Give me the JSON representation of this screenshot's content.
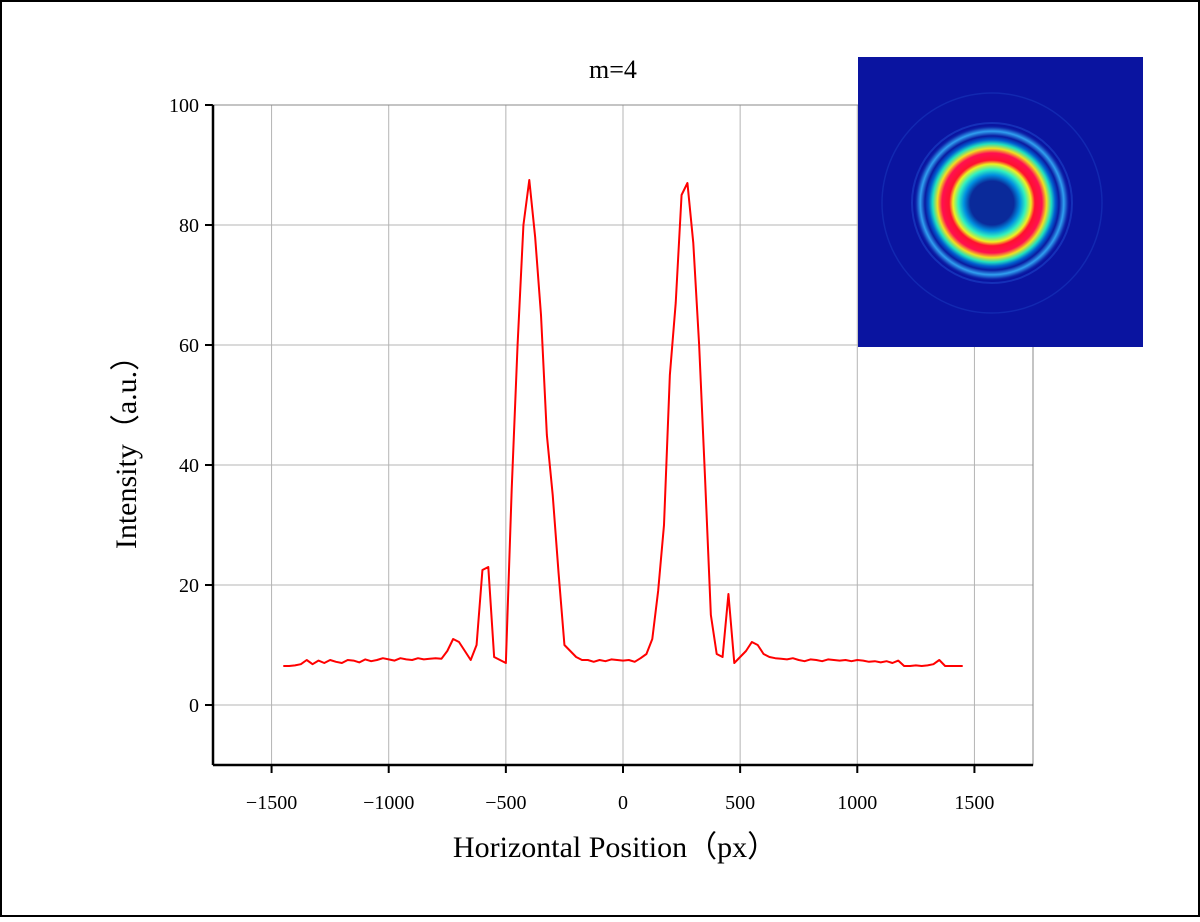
{
  "chart_data": {
    "type": "line",
    "title": "m=4",
    "x_label": "Horizontal Position（px）",
    "y_label": "Intensity（a.u.）",
    "color": "#ff0000",
    "grid": true,
    "xlim": [
      -1750,
      1750
    ],
    "ylim": [
      -10,
      100
    ],
    "xticks": [
      {
        "value": -1500,
        "label": "−1500"
      },
      {
        "value": -1000,
        "label": "−1000"
      },
      {
        "value": -500,
        "label": "−500"
      },
      0,
      500,
      1000,
      1500
    ],
    "yticks": [
      0,
      20,
      40,
      60,
      80,
      100
    ],
    "x": [
      -1450,
      -1425,
      -1400,
      -1375,
      -1350,
      -1325,
      -1300,
      -1275,
      -1250,
      -1225,
      -1200,
      -1175,
      -1150,
      -1125,
      -1100,
      -1075,
      -1050,
      -1025,
      -1000,
      -975,
      -950,
      -925,
      -900,
      -875,
      -850,
      -825,
      -800,
      -775,
      -750,
      -725,
      -700,
      -675,
      -650,
      -625,
      -600,
      -575,
      -550,
      -525,
      -500,
      -475,
      -450,
      -425,
      -400,
      -375,
      -350,
      -325,
      -300,
      -275,
      -250,
      -225,
      -200,
      -175,
      -150,
      -125,
      -100,
      -75,
      -50,
      -25,
      0,
      25,
      50,
      75,
      100,
      125,
      150,
      175,
      200,
      225,
      250,
      275,
      300,
      325,
      350,
      375,
      400,
      425,
      450,
      475,
      500,
      525,
      550,
      575,
      600,
      625,
      650,
      675,
      700,
      725,
      750,
      775,
      800,
      825,
      850,
      875,
      900,
      925,
      950,
      975,
      1000,
      1025,
      1050,
      1075,
      1100,
      1125,
      1150,
      1175,
      1200,
      1225,
      1250,
      1275,
      1300,
      1325,
      1350,
      1375,
      1400,
      1425,
      1450
    ],
    "values": [
      6.5,
      6.5,
      6.6,
      6.8,
      7.5,
      6.8,
      7.4,
      7,
      7.5,
      7.2,
      7,
      7.5,
      7.4,
      7.1,
      7.6,
      7.3,
      7.5,
      7.8,
      7.6,
      7.4,
      7.8,
      7.6,
      7.5,
      7.8,
      7.6,
      7.7,
      7.8,
      7.7,
      9,
      11,
      10.5,
      9,
      7.5,
      10,
      22.5,
      23,
      8,
      7.5,
      7,
      36,
      60,
      80,
      87.5,
      78,
      65,
      45,
      35,
      22,
      10,
      9,
      8,
      7.5,
      7.5,
      7.2,
      7.5,
      7.3,
      7.6,
      7.5,
      7.4,
      7.5,
      7.2,
      7.8,
      8.5,
      11,
      19,
      30,
      55,
      67,
      85,
      87,
      77,
      60,
      38,
      15,
      8.5,
      8,
      18.5,
      7,
      8,
      9,
      10.5,
      10,
      8.5,
      8,
      7.8,
      7.7,
      7.6,
      7.8,
      7.5,
      7.3,
      7.6,
      7.5,
      7.3,
      7.6,
      7.5,
      7.4,
      7.5,
      7.3,
      7.5,
      7.4,
      7.2,
      7.3,
      7.1,
      7.3,
      7,
      7.4,
      6.5,
      6.5,
      6.6,
      6.5,
      6.6,
      6.8,
      7.5,
      6.5,
      6.5,
      6.5,
      6.5
    ]
  }
}
